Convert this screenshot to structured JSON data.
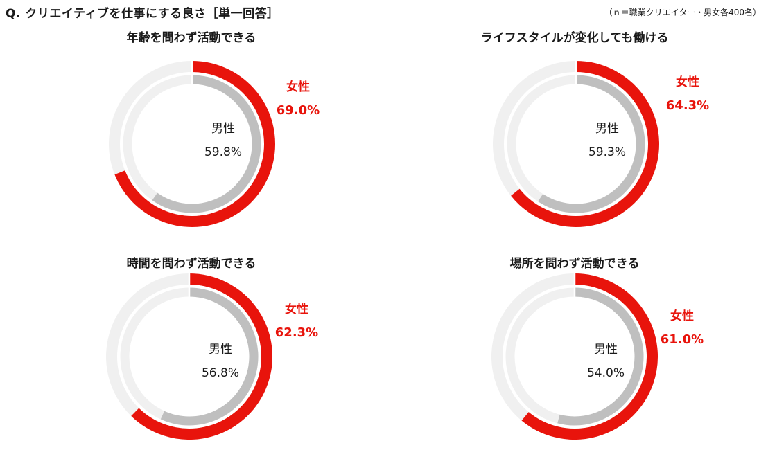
{
  "header": {
    "title": "Q. クリエイティブを仕事にする良さ［単一回答］",
    "note": "（ｎ＝職業クリエイター・男女各400名）"
  },
  "colors": {
    "female": "#e8140c",
    "male": "#bfbfbf",
    "track": "#f0f0f0"
  },
  "chart_data": [
    {
      "type": "donut",
      "title": "年齢を問わず活動できる",
      "series": [
        {
          "name": "女性",
          "value": 69.0,
          "label": "69.0%"
        },
        {
          "name": "男性",
          "value": 59.8,
          "label": "59.8%"
        }
      ],
      "ylim": [
        0,
        100
      ]
    },
    {
      "type": "donut",
      "title": "ライフスタイルが変化しても働ける",
      "series": [
        {
          "name": "女性",
          "value": 64.3,
          "label": "64.3%"
        },
        {
          "name": "男性",
          "value": 59.3,
          "label": "59.3%"
        }
      ],
      "ylim": [
        0,
        100
      ]
    },
    {
      "type": "donut",
      "title": "時間を問わず活動できる",
      "series": [
        {
          "name": "女性",
          "value": 62.3,
          "label": "62.3%"
        },
        {
          "name": "男性",
          "value": 56.8,
          "label": "56.8%"
        }
      ],
      "ylim": [
        0,
        100
      ]
    },
    {
      "type": "donut",
      "title": "場所を問わず活動できる",
      "series": [
        {
          "name": "女性",
          "value": 61.0,
          "label": "61.0%"
        },
        {
          "name": "男性",
          "value": 54.0,
          "label": "54.0%"
        }
      ],
      "ylim": [
        0,
        100
      ]
    }
  ]
}
